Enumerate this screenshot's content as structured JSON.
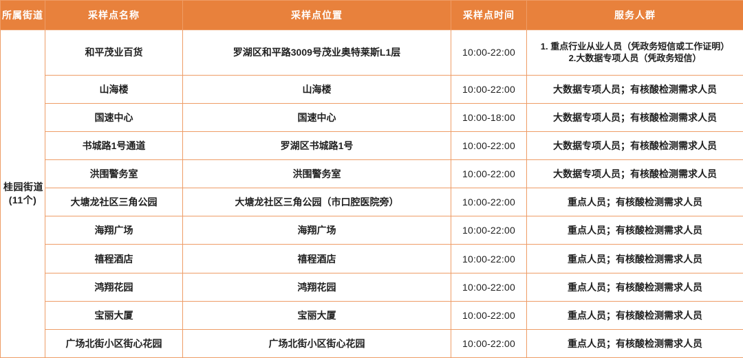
{
  "colors": {
    "header-bg": "#E8813C",
    "border": "#EE9C66",
    "header-text": "#FFFFFF",
    "cell-text": "#1F1F1F",
    "cell-bg": "#FFFFFF"
  },
  "table": {
    "columns": [
      "所属街道",
      "采样点名称",
      "采样点位置",
      "采样点时间",
      "服务人群"
    ],
    "street": {
      "name": "桂园街道",
      "count": "(11个)"
    },
    "rows": [
      {
        "name": "和平茂业百货",
        "location": "罗湖区和平路3009号茂业奥特莱斯L1层",
        "time": "10:00-22:00",
        "service": [
          "1. 重点行业从业人员（凭政务短信或工作证明）",
          "2.大数据专项人员（凭政务短信）"
        ]
      },
      {
        "name": "山海楼",
        "location": "山海楼",
        "time": "10:00-22:00",
        "service": [
          "大数据专项人员；有核酸检测需求人员"
        ]
      },
      {
        "name": "国速中心",
        "location": "国速中心",
        "time": "10:00-18:00",
        "service": [
          "大数据专项人员；有核酸检测需求人员"
        ]
      },
      {
        "name": "书城路1号通道",
        "location": "罗湖区书城路1号",
        "time": "10:00-22:00",
        "service": [
          "大数据专项人员；有核酸检测需求人员"
        ]
      },
      {
        "name": "洪围警务室",
        "location": "洪围警务室",
        "time": "10:00-22:00",
        "service": [
          "大数据专项人员；有核酸检测需求人员"
        ]
      },
      {
        "name": "大塘龙社区三角公园",
        "location": "大塘龙社区三角公园（市口腔医院旁）",
        "time": "10:00-22:00",
        "service": [
          "重点人员；有核酸检测需求人员"
        ]
      },
      {
        "name": "海翔广场",
        "location": "海翔广场",
        "time": "10:00-22:00",
        "service": [
          "重点人员；有核酸检测需求人员"
        ]
      },
      {
        "name": "禧程酒店",
        "location": "禧程酒店",
        "time": "10:00-22:00",
        "service": [
          "重点人员；有核酸检测需求人员"
        ]
      },
      {
        "name": "鸿翔花园",
        "location": "鸿翔花园",
        "time": "10:00-22:00",
        "service": [
          "重点人员；有核酸检测需求人员"
        ]
      },
      {
        "name": "宝丽大厦",
        "location": "宝丽大厦",
        "time": "10:00-22:00",
        "service": [
          "重点人员；有核酸检测需求人员"
        ]
      },
      {
        "name": "广场北街小区街心花园",
        "location": "广场北街小区街心花园",
        "time": "10:00-22:00",
        "service": [
          "重点人员；有核酸检测需求人员"
        ]
      }
    ]
  }
}
